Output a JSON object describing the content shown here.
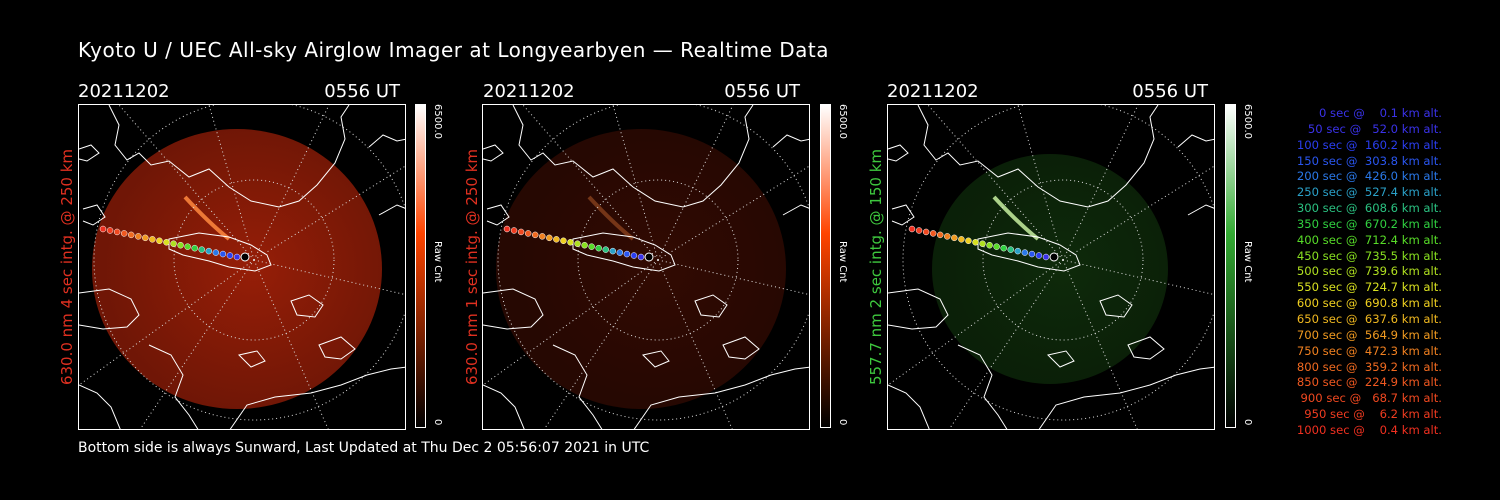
{
  "title": "Kyoto U / UEC All-sky Airglow Imager at Longyearbyen — Realtime Data",
  "footer": "Bottom side is always Sunward, Last Updated at Thu Dec  2 05:56:07 2021 in UTC",
  "panels": [
    {
      "date": "20211202",
      "time": "0556 UT",
      "ylabel": "630.0 nm 4 sec intg. @ 250 km",
      "label_color": "#e03020",
      "cb_max": "6500.0",
      "cb_min": "0",
      "cb_unit": "Raw Cnt",
      "cb_color": "#ff4400",
      "intensity": 0.75
    },
    {
      "date": "20211202",
      "time": "0556 UT",
      "ylabel": "630.0 nm 1 sec intg. @ 250 km",
      "label_color": "#e03020",
      "cb_max": "6500.0",
      "cb_min": "0",
      "cb_unit": "Raw Cnt",
      "cb_color": "#ff4400",
      "intensity": 0.25
    },
    {
      "date": "20211202",
      "time": "0556 UT",
      "ylabel": "557.7 nm 2 sec intg. @ 150 km",
      "label_color": "#3ec83e",
      "cb_max": "6500.0",
      "cb_min": "0",
      "cb_unit": "Raw Cnt",
      "cb_color": "#33aa33",
      "intensity": 0.35
    }
  ],
  "legend": [
    {
      "text": "   0 sec @    0.1 km alt.",
      "color": "#3a32e8"
    },
    {
      "text": "  50 sec @   52.0 km alt.",
      "color": "#3a32e8"
    },
    {
      "text": " 100 sec @  160.2 km alt.",
      "color": "#2a3ef0"
    },
    {
      "text": " 150 sec @  303.8 km alt.",
      "color": "#2a56f0"
    },
    {
      "text": " 200 sec @  426.0 km alt.",
      "color": "#2a78e8"
    },
    {
      "text": " 250 sec @  527.4 km alt.",
      "color": "#2aa0c8"
    },
    {
      "text": " 300 sec @  608.6 km alt.",
      "color": "#2ac080"
    },
    {
      "text": " 350 sec @  670.2 km alt.",
      "color": "#30d040"
    },
    {
      "text": " 400 sec @  712.4 km alt.",
      "color": "#58dc28"
    },
    {
      "text": " 450 sec @  735.5 km alt.",
      "color": "#88e020"
    },
    {
      "text": " 500 sec @  739.6 km alt.",
      "color": "#b0e020"
    },
    {
      "text": " 550 sec @  724.7 km alt.",
      "color": "#d8e020"
    },
    {
      "text": " 600 sec @  690.8 km alt.",
      "color": "#f0d020"
    },
    {
      "text": " 650 sec @  637.6 km alt.",
      "color": "#f0b820"
    },
    {
      "text": " 700 sec @  564.9 km alt.",
      "color": "#f09a20"
    },
    {
      "text": " 750 sec @  472.3 km alt.",
      "color": "#f08020"
    },
    {
      "text": " 800 sec @  359.2 km alt.",
      "color": "#f06a20"
    },
    {
      "text": " 850 sec @  224.9 km alt.",
      "color": "#f05820"
    },
    {
      "text": " 900 sec @   68.7 km alt.",
      "color": "#f04820"
    },
    {
      "text": " 950 sec @    6.2 km alt.",
      "color": "#f03c20"
    },
    {
      "text": "1000 sec @    0.4 km alt.",
      "color": "#f03020"
    }
  ]
}
